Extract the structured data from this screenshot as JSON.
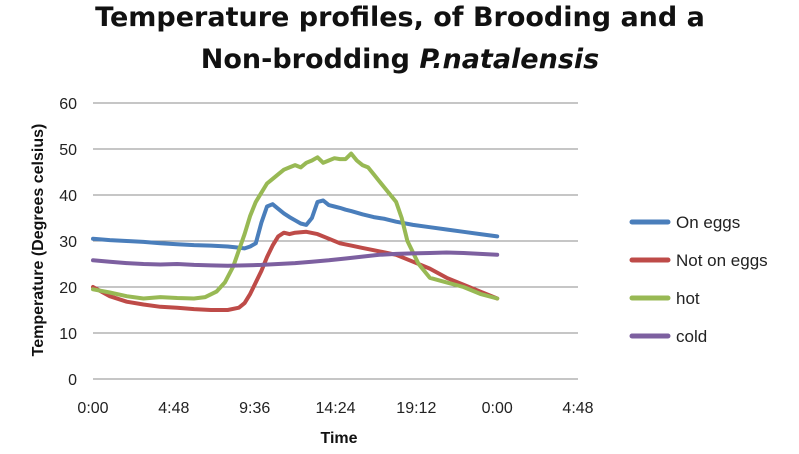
{
  "chart_data": {
    "type": "line",
    "title_line1": "Temperature profiles, of  Brooding and a",
    "title_line2_prefix": "Non-brodding ",
    "title_line2_italic": "P.natalensis",
    "xlabel": "Time",
    "ylabel": "Temperature (Degrees celsius)",
    "xlim": [
      0,
      1728
    ],
    "ylim": [
      0,
      60
    ],
    "grid": true,
    "legend_position": "right",
    "x_ticks": [
      {
        "value": 0,
        "label": "0:00"
      },
      {
        "value": 288,
        "label": "4:48"
      },
      {
        "value": 576,
        "label": "9:36"
      },
      {
        "value": 864,
        "label": "14:24"
      },
      {
        "value": 1152,
        "label": "19:12"
      },
      {
        "value": 1440,
        "label": "0:00"
      },
      {
        "value": 1728,
        "label": "4:48"
      }
    ],
    "y_ticks": [
      0,
      10,
      20,
      30,
      40,
      50,
      60
    ],
    "series": [
      {
        "name": "On eggs",
        "color": "#4a7ebb",
        "x": [
          0,
          60,
          120,
          180,
          240,
          300,
          360,
          420,
          480,
          510,
          540,
          560,
          580,
          600,
          620,
          640,
          660,
          680,
          700,
          720,
          740,
          760,
          780,
          800,
          820,
          840,
          860,
          880,
          900,
          920,
          960,
          1000,
          1040,
          1080,
          1140,
          1200,
          1260,
          1320,
          1380,
          1440
        ],
        "y": [
          30.5,
          30.2,
          30.0,
          29.8,
          29.5,
          29.3,
          29.1,
          29.0,
          28.8,
          28.6,
          28.4,
          28.8,
          29.5,
          34.0,
          37.5,
          38.0,
          37.0,
          36.0,
          35.2,
          34.5,
          33.8,
          33.5,
          35.0,
          38.5,
          38.8,
          37.8,
          37.5,
          37.2,
          36.8,
          36.5,
          35.8,
          35.2,
          34.8,
          34.2,
          33.5,
          33.0,
          32.5,
          32.0,
          31.5,
          31.0
        ]
      },
      {
        "name": "Not on eggs",
        "color": "#be4b48",
        "x": [
          0,
          60,
          120,
          180,
          240,
          300,
          360,
          420,
          480,
          520,
          540,
          560,
          580,
          600,
          620,
          640,
          660,
          680,
          700,
          720,
          760,
          800,
          840,
          880,
          920,
          960,
          1000,
          1040,
          1080,
          1140,
          1200,
          1260,
          1320,
          1380,
          1440
        ],
        "y": [
          20.0,
          18.0,
          16.8,
          16.2,
          15.7,
          15.5,
          15.2,
          15.0,
          15.0,
          15.5,
          16.5,
          18.5,
          21.0,
          23.5,
          26.5,
          29.0,
          31.0,
          31.8,
          31.5,
          31.8,
          32.0,
          31.5,
          30.5,
          29.5,
          29.0,
          28.5,
          28.0,
          27.5,
          27.0,
          25.5,
          24.0,
          22.0,
          20.5,
          19.0,
          17.5
        ]
      },
      {
        "name": "hot",
        "color": "#98b954",
        "x": [
          0,
          60,
          120,
          180,
          240,
          300,
          360,
          400,
          440,
          470,
          500,
          520,
          540,
          560,
          580,
          600,
          620,
          640,
          660,
          680,
          700,
          720,
          740,
          760,
          780,
          800,
          820,
          840,
          860,
          880,
          900,
          920,
          940,
          960,
          980,
          1000,
          1020,
          1040,
          1060,
          1080,
          1100,
          1120,
          1160,
          1200,
          1260,
          1320,
          1380,
          1440
        ],
        "y": [
          19.5,
          18.8,
          18.0,
          17.5,
          17.8,
          17.6,
          17.5,
          17.8,
          19.0,
          21.0,
          24.5,
          28.0,
          31.5,
          35.5,
          38.5,
          40.5,
          42.5,
          43.5,
          44.5,
          45.5,
          46.0,
          46.5,
          46.0,
          47.0,
          47.5,
          48.2,
          47.0,
          47.5,
          48.0,
          47.8,
          47.8,
          49.0,
          47.5,
          46.5,
          46.0,
          44.5,
          43.0,
          41.5,
          40.0,
          38.5,
          35.0,
          30.0,
          25.0,
          22.0,
          21.0,
          20.0,
          18.5,
          17.5
        ]
      },
      {
        "name": "cold",
        "color": "#7d60a0",
        "x": [
          0,
          60,
          120,
          180,
          240,
          300,
          360,
          420,
          480,
          540,
          600,
          660,
          720,
          780,
          840,
          900,
          960,
          1020,
          1080,
          1140,
          1200,
          1260,
          1320,
          1380,
          1440
        ],
        "y": [
          25.8,
          25.5,
          25.2,
          25.0,
          24.9,
          25.0,
          24.8,
          24.7,
          24.6,
          24.7,
          24.8,
          25.0,
          25.2,
          25.5,
          25.8,
          26.2,
          26.6,
          27.0,
          27.2,
          27.3,
          27.4,
          27.5,
          27.4,
          27.2,
          27.0
        ]
      }
    ]
  }
}
